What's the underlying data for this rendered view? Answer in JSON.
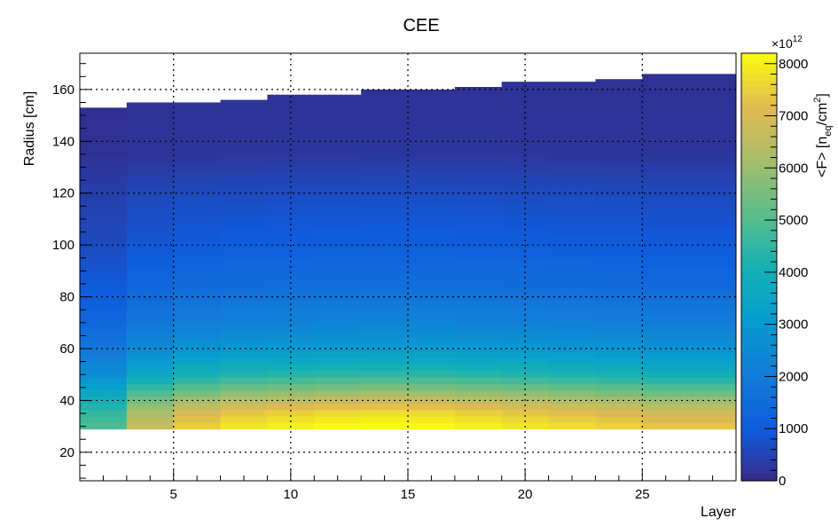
{
  "chart_data": {
    "type": "heatmap",
    "title": "CEE",
    "xlabel": "Layer",
    "ylabel": "Radius [cm]",
    "xlim": [
      1,
      29
    ],
    "ylim": [
      9,
      174
    ],
    "x_ticks": [
      5,
      10,
      15,
      20,
      25
    ],
    "y_ticks": [
      20,
      40,
      60,
      80,
      100,
      120,
      140,
      160
    ],
    "grid": true,
    "colorbar": {
      "label_main": "<F> [n",
      "label_sub": "eq",
      "label_tail": "/cm",
      "label_sup": "2",
      "label_end": "]",
      "multiplier_base": "×10",
      "multiplier_exp": "12",
      "range": [
        0,
        8200
      ],
      "ticks": [
        "0",
        "1000",
        "2000",
        "3000",
        "4000",
        "5000",
        "6000",
        "7000",
        "8000"
      ]
    },
    "layers": [
      {
        "x0": 1,
        "x1": 3,
        "r_min": 29,
        "r_max": 153
      },
      {
        "x0": 3,
        "x1": 5,
        "r_min": 29,
        "r_max": 155
      },
      {
        "x0": 5,
        "x1": 7,
        "r_min": 29,
        "r_max": 155
      },
      {
        "x0": 7,
        "x1": 9,
        "r_min": 29,
        "r_max": 156
      },
      {
        "x0": 9,
        "x1": 11,
        "r_min": 29,
        "r_max": 158
      },
      {
        "x0": 11,
        "x1": 13,
        "r_min": 29,
        "r_max": 158
      },
      {
        "x0": 13,
        "x1": 15,
        "r_min": 29,
        "r_max": 160
      },
      {
        "x0": 15,
        "x1": 17,
        "r_min": 29,
        "r_max": 160
      },
      {
        "x0": 17,
        "x1": 19,
        "r_min": 29,
        "r_max": 161
      },
      {
        "x0": 19,
        "x1": 21,
        "r_min": 29,
        "r_max": 163
      },
      {
        "x0": 21,
        "x1": 23,
        "r_min": 29,
        "r_max": 163
      },
      {
        "x0": 23,
        "x1": 25,
        "r_min": 29,
        "r_max": 164
      },
      {
        "x0": 25,
        "x1": 29,
        "r_min": 29,
        "r_max": 166
      }
    ],
    "radial_profile": [
      {
        "r": 30,
        "f": 7900
      },
      {
        "r": 35,
        "f": 7400
      },
      {
        "r": 40,
        "f": 6500
      },
      {
        "r": 45,
        "f": 5300
      },
      {
        "r": 50,
        "f": 4300
      },
      {
        "r": 55,
        "f": 3600
      },
      {
        "r": 60,
        "f": 3000
      },
      {
        "r": 70,
        "f": 2200
      },
      {
        "r": 80,
        "f": 1700
      },
      {
        "r": 90,
        "f": 1350
      },
      {
        "r": 100,
        "f": 1050
      },
      {
        "r": 110,
        "f": 850
      },
      {
        "r": 120,
        "f": 650
      },
      {
        "r": 135,
        "f": 250
      },
      {
        "r": 150,
        "f": 200
      },
      {
        "r": 166,
        "f": 150
      }
    ],
    "layer_scale": [
      0.62,
      0.85,
      0.95,
      1.0,
      1.02,
      1.04,
      1.05,
      1.04,
      1.02,
      1.0,
      0.98,
      0.96,
      0.93
    ]
  }
}
